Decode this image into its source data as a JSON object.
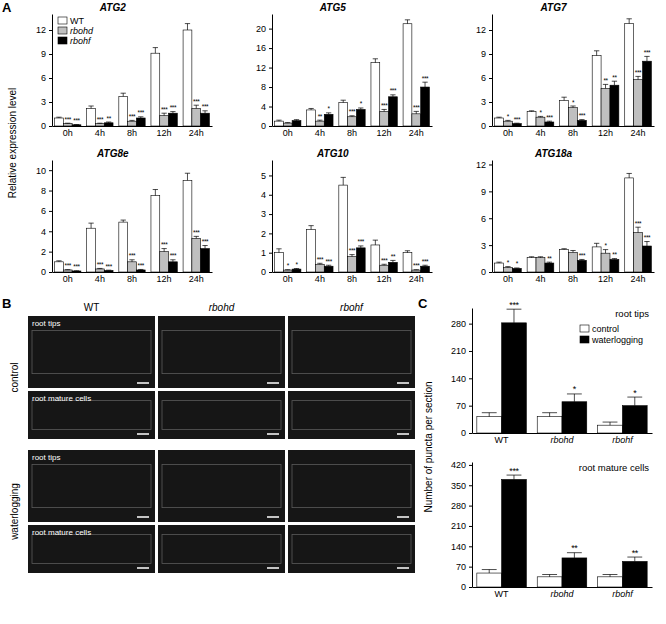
{
  "chart_data": [
    {
      "type": "bar",
      "title": "ATG2",
      "y_label": "Relative expression level",
      "legend": "top-left",
      "categories": [
        "0h",
        "4h",
        "8h",
        "12h",
        "24h"
      ],
      "ylim": [
        0,
        14
      ],
      "yticks": [
        0,
        3,
        6,
        9,
        12
      ],
      "series": [
        {
          "name": "WT",
          "color": "#ffffff",
          "values": [
            1.0,
            2.2,
            3.7,
            9.1,
            12.0
          ],
          "errors": [
            0.1,
            0.3,
            0.4,
            0.7,
            0.8
          ],
          "significance": [
            null,
            null,
            null,
            null,
            null
          ]
        },
        {
          "name": "rbohd",
          "color": "#bfbfbf",
          "values": [
            0.3,
            0.3,
            0.6,
            1.3,
            2.2
          ],
          "errors": [
            0.05,
            0.05,
            0.1,
            0.3,
            0.4
          ],
          "significance": [
            "***",
            "***",
            "***",
            "***",
            "***"
          ]
        },
        {
          "name": "rbohf",
          "color": "#000000",
          "values": [
            0.15,
            0.4,
            1.0,
            1.6,
            1.6
          ],
          "errors": [
            0.03,
            0.1,
            0.15,
            0.2,
            0.3
          ],
          "significance": [
            "***",
            "**",
            "***",
            "***",
            "***"
          ]
        }
      ]
    },
    {
      "type": "bar",
      "title": "ATG5",
      "categories": [
        "0h",
        "4h",
        "8h",
        "12h",
        "24h"
      ],
      "ylim": [
        0,
        23
      ],
      "yticks": [
        0,
        4,
        8,
        12,
        16,
        20
      ],
      "series": [
        {
          "name": "WT",
          "color": "#ffffff",
          "values": [
            1.0,
            3.3,
            4.8,
            13.0,
            21.0
          ],
          "errors": [
            0.2,
            0.3,
            0.5,
            0.8,
            0.8
          ],
          "significance": [
            null,
            null,
            null,
            null,
            null
          ]
        },
        {
          "name": "rbohd",
          "color": "#bfbfbf",
          "values": [
            0.6,
            1.0,
            1.9,
            3.0,
            2.5
          ],
          "errors": [
            0.1,
            0.2,
            0.2,
            0.4,
            0.5
          ],
          "significance": [
            null,
            "**",
            "***",
            "***",
            "***"
          ]
        },
        {
          "name": "rbohf",
          "color": "#000000",
          "values": [
            1.1,
            2.4,
            3.4,
            6.0,
            8.0
          ],
          "errors": [
            0.2,
            0.3,
            0.3,
            0.4,
            1.0
          ],
          "significance": [
            null,
            "*",
            "*",
            "***",
            "***"
          ]
        }
      ]
    },
    {
      "type": "bar",
      "title": "ATG7",
      "categories": [
        "0h",
        "4h",
        "8h",
        "12h",
        "24h"
      ],
      "ylim": [
        0,
        14
      ],
      "yticks": [
        0,
        3,
        6,
        9,
        12
      ],
      "series": [
        {
          "name": "WT",
          "color": "#ffffff",
          "values": [
            1.0,
            1.8,
            3.2,
            8.8,
            12.8
          ],
          "errors": [
            0.1,
            0.1,
            0.4,
            0.6,
            0.6
          ],
          "significance": [
            null,
            null,
            null,
            null,
            null
          ]
        },
        {
          "name": "rbohd",
          "color": "#bfbfbf",
          "values": [
            0.6,
            1.1,
            2.3,
            4.7,
            5.8
          ],
          "errors": [
            0.1,
            0.1,
            0.2,
            0.5,
            0.4
          ],
          "significance": [
            "*",
            "*",
            "*",
            "**",
            "***"
          ]
        },
        {
          "name": "rbohf",
          "color": "#000000",
          "values": [
            0.3,
            0.5,
            0.7,
            5.1,
            8.1
          ],
          "errors": [
            0.05,
            0.1,
            0.1,
            0.5,
            0.6
          ],
          "significance": [
            "***",
            "***",
            "***",
            "**",
            "***"
          ]
        }
      ]
    },
    {
      "type": "bar",
      "title": "ATG8e",
      "categories": [
        "0h",
        "4h",
        "8h",
        "12h",
        "24h"
      ],
      "ylim": [
        0,
        11
      ],
      "yticks": [
        0,
        2,
        4,
        6,
        8,
        10
      ],
      "series": [
        {
          "name": "WT",
          "color": "#ffffff",
          "values": [
            1.0,
            4.3,
            4.9,
            7.5,
            9.0
          ],
          "errors": [
            0.1,
            0.5,
            0.2,
            0.6,
            0.7
          ],
          "significance": [
            null,
            null,
            null,
            null,
            null
          ]
        },
        {
          "name": "rbohd",
          "color": "#bfbfbf",
          "values": [
            0.2,
            0.3,
            1.0,
            2.0,
            3.3
          ],
          "errors": [
            0.03,
            0.05,
            0.2,
            0.3,
            0.2
          ],
          "significance": [
            "***",
            "***",
            "***",
            "***",
            "***"
          ]
        },
        {
          "name": "rbohf",
          "color": "#000000",
          "values": [
            0.1,
            0.15,
            0.2,
            1.0,
            2.3
          ],
          "errors": [
            0.02,
            0.03,
            0.05,
            0.2,
            0.3
          ],
          "significance": [
            "***",
            "***",
            "***",
            "***",
            "***"
          ]
        }
      ]
    },
    {
      "type": "bar",
      "title": "ATG10",
      "categories": [
        "0h",
        "4h",
        "8h",
        "12h",
        "24h"
      ],
      "ylim": [
        0,
        5.8
      ],
      "yticks": [
        0,
        1,
        2,
        3,
        4,
        5
      ],
      "series": [
        {
          "name": "WT",
          "color": "#ffffff",
          "values": [
            1.0,
            2.2,
            4.5,
            1.4,
            1.0
          ],
          "errors": [
            0.2,
            0.2,
            0.4,
            0.25,
            0.1
          ],
          "significance": [
            null,
            null,
            null,
            null,
            null
          ]
        },
        {
          "name": "rbohd",
          "color": "#bfbfbf",
          "values": [
            0.1,
            0.4,
            0.8,
            0.35,
            0.1
          ],
          "errors": [
            0.02,
            0.05,
            0.1,
            0.05,
            0.02
          ],
          "significance": [
            "*",
            "***",
            "***",
            "***",
            "***"
          ]
        },
        {
          "name": "rbohf",
          "color": "#000000",
          "values": [
            0.15,
            0.3,
            1.25,
            0.5,
            0.3
          ],
          "errors": [
            0.03,
            0.05,
            0.1,
            0.1,
            0.05
          ],
          "significance": [
            "*",
            "***",
            "***",
            "**",
            "***"
          ]
        }
      ]
    },
    {
      "type": "bar",
      "title": "ATG18a",
      "categories": [
        "0h",
        "4h",
        "8h",
        "12h",
        "24h"
      ],
      "ylim": [
        0,
        12.5
      ],
      "yticks": [
        0,
        3,
        6,
        9,
        12
      ],
      "series": [
        {
          "name": "WT",
          "color": "#ffffff",
          "values": [
            1.0,
            1.6,
            2.5,
            2.8,
            10.5
          ],
          "errors": [
            0.1,
            0.1,
            0.1,
            0.4,
            0.5
          ],
          "significance": [
            null,
            null,
            null,
            null,
            null
          ]
        },
        {
          "name": "rbohd",
          "color": "#bfbfbf",
          "values": [
            0.5,
            1.6,
            2.2,
            2.1,
            4.4
          ],
          "errors": [
            0.1,
            0.1,
            0.2,
            0.4,
            0.6
          ],
          "significance": [
            "*",
            null,
            null,
            "*",
            "***"
          ]
        },
        {
          "name": "rbohf",
          "color": "#000000",
          "values": [
            0.4,
            1.0,
            1.3,
            1.4,
            2.9
          ],
          "errors": [
            0.05,
            0.1,
            0.1,
            0.1,
            0.5
          ],
          "significance": [
            "*",
            "**",
            "***",
            "**",
            "***"
          ]
        }
      ]
    },
    {
      "type": "bar",
      "title": "root tips",
      "y_label": "Number of puncta per section",
      "legend": "top-right",
      "categories": [
        "WT",
        "rbohd",
        "rbohf"
      ],
      "ylim": [
        0,
        320
      ],
      "yticks": [
        0,
        70,
        140,
        210,
        280
      ],
      "series": [
        {
          "name": "control",
          "color": "#ffffff",
          "values": [
            42,
            42,
            20
          ],
          "errors": [
            10,
            10,
            8
          ],
          "significance": [
            null,
            null,
            null
          ]
        },
        {
          "name": "waterlogging",
          "color": "#000000",
          "values": [
            282,
            80,
            70
          ],
          "errors": [
            35,
            20,
            22
          ],
          "significance": [
            "***",
            "*",
            "*"
          ]
        }
      ]
    },
    {
      "type": "bar",
      "title": "root mature cells",
      "categories": [
        "WT",
        "rbohd",
        "rbohf"
      ],
      "ylim": [
        0,
        430
      ],
      "yticks": [
        0,
        70,
        140,
        210,
        280,
        350,
        420
      ],
      "series": [
        {
          "name": "control",
          "color": "#ffffff",
          "values": [
            48,
            35,
            35
          ],
          "errors": [
            12,
            8,
            8
          ],
          "significance": [
            null,
            null,
            null
          ]
        },
        {
          "name": "waterlogging",
          "color": "#000000",
          "values": [
            370,
            100,
            88
          ],
          "errors": [
            15,
            18,
            15
          ],
          "significance": [
            "***",
            "**",
            "**"
          ]
        }
      ]
    }
  ],
  "figure": {
    "panel_labels": [
      "A",
      "B",
      "C"
    ]
  },
  "micrographs": {
    "columns": [
      "WT",
      "rbohd",
      "rbohf"
    ],
    "conditions": [
      "control",
      "waterlogging"
    ],
    "regions": [
      "root tips",
      "root mature cells"
    ]
  }
}
